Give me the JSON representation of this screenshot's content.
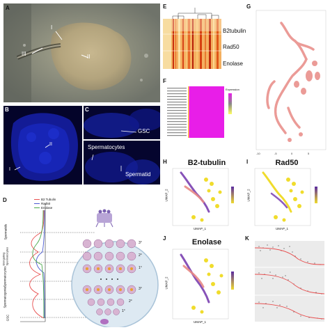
{
  "panels": {
    "A": {
      "letter": "A",
      "labels": {
        "i": "I",
        "ii": "II",
        "iii": "III"
      }
    },
    "B": {
      "letter": "B",
      "labels": {
        "i": "I",
        "ii": "II"
      }
    },
    "C": {
      "letter": "C",
      "labels": {
        "gsc": "GSC",
        "spermatocytes": "Spermatocytes",
        "spermatid": "Spermatid"
      }
    },
    "D": {
      "letter": "D",
      "legend": [
        "B2 Tubulin",
        "Rad50",
        "Enolase"
      ],
      "stages": [
        "Spermatids",
        "Elongating Spermatocytes",
        "Spermatocytes",
        "Spermatogonia",
        "GSC"
      ],
      "roman": [
        "3°",
        "2°",
        "1°",
        "3°",
        "2°",
        "1°"
      ]
    },
    "E": {
      "letter": "E",
      "genes": [
        "B2tubulin",
        "Rad50",
        "Enolase"
      ]
    },
    "F": {
      "letter": "F",
      "legend_title": "Expression"
    },
    "G": {
      "letter": "G"
    },
    "H": {
      "letter": "H",
      "title": "B2-tubulin",
      "xlabel": "UMAP_1",
      "ylabel": "UMAP_2"
    },
    "I": {
      "letter": "I",
      "title": "Rad50",
      "xlabel": "UMAP_1",
      "ylabel": "UMAP_2"
    },
    "J": {
      "letter": "J",
      "title": "Enolase",
      "xlabel": "UMAP_1",
      "ylabel": "UMAP_2"
    },
    "K": {
      "letter": "K"
    }
  },
  "colors": {
    "brightfield_bg": "#8a8d83",
    "fluor_bg": "#07072e",
    "heat_orange": "#e8792c",
    "magenta": "#e81ee8",
    "umap_pink": "#e88a85",
    "umap_purple": "#7a3fb0",
    "umap_yellow": "#f0dc2c",
    "curve_red": "#e85050",
    "curve_blue": "#4a5ad0",
    "curve_green": "#4aa84a"
  },
  "icons": [
    "cell-cluster-icon",
    "hub-cell-icon"
  ]
}
